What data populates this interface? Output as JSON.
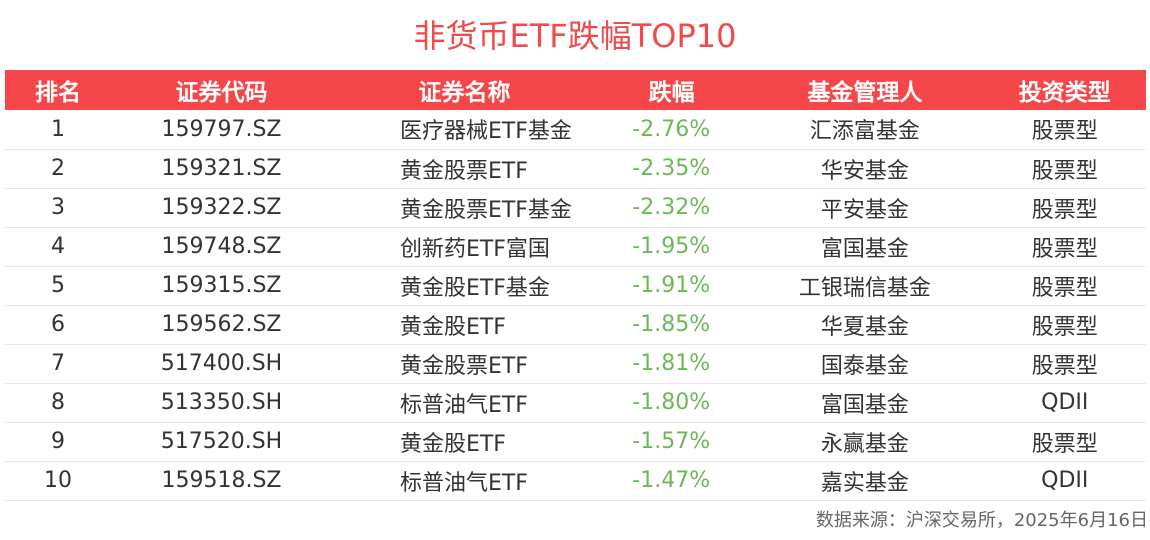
{
  "title": "非货币ETF跌幅TOP10",
  "columns": [
    "排名",
    "证券代码",
    "证券名称",
    "跌幅",
    "基金管理人",
    "投资类型"
  ],
  "rows": [
    {
      "rank": "1",
      "code": "159797.SZ",
      "name": "医疗器械ETF基金",
      "change": "-2.76%",
      "manager": "汇添富基金",
      "type": "股票型"
    },
    {
      "rank": "2",
      "code": "159321.SZ",
      "name": "黄金股票ETF",
      "change": "-2.35%",
      "manager": "华安基金",
      "type": "股票型"
    },
    {
      "rank": "3",
      "code": "159322.SZ",
      "name": "黄金股票ETF基金",
      "change": "-2.32%",
      "manager": "平安基金",
      "type": "股票型"
    },
    {
      "rank": "4",
      "code": "159748.SZ",
      "name": "创新药ETF富国",
      "change": "-1.95%",
      "manager": "富国基金",
      "type": "股票型"
    },
    {
      "rank": "5",
      "code": "159315.SZ",
      "name": "黄金股ETF基金",
      "change": "-1.91%",
      "manager": "工银瑞信基金",
      "type": "股票型"
    },
    {
      "rank": "6",
      "code": "159562.SZ",
      "name": "黄金股ETF",
      "change": "-1.85%",
      "manager": "华夏基金",
      "type": "股票型"
    },
    {
      "rank": "7",
      "code": "517400.SH",
      "name": "黄金股票ETF",
      "change": "-1.81%",
      "manager": "国泰基金",
      "type": "股票型"
    },
    {
      "rank": "8",
      "code": "513350.SH",
      "name": "标普油气ETF",
      "change": "-1.80%",
      "manager": "富国基金",
      "type": "QDII"
    },
    {
      "rank": "9",
      "code": "517520.SH",
      "name": "黄金股ETF",
      "change": "-1.57%",
      "manager": "永赢基金",
      "type": "股票型"
    },
    {
      "rank": "10",
      "code": "159518.SZ",
      "name": "标普油气ETF",
      "change": "-1.47%",
      "manager": "嘉实基金",
      "type": "QDII"
    }
  ],
  "source": "数据来源：沪深交易所，2025年6月16日",
  "colors": {
    "title": "#ef4b4d",
    "header_bg": "#f5474a",
    "header_text": "#ffffff",
    "change_text": "#6cb858"
  }
}
